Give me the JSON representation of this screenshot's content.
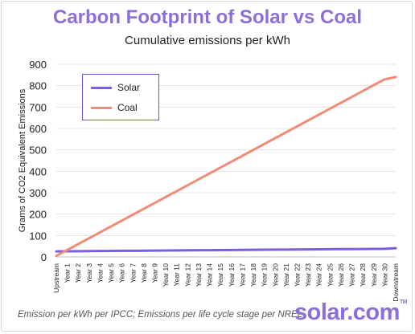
{
  "header": {
    "title": "Carbon Footprint of Solar vs Coal",
    "subtitle": "Cumulative emissions per kWh"
  },
  "footer": {
    "source": "Emission per kWh per IPCC; Emissions per life cycle stage per NREL.",
    "brand": "solar.com",
    "brand_mark": "TM"
  },
  "colors": {
    "title": "#8c6fd8",
    "solar": "#7b5fe0",
    "coal": "#f08c78",
    "grid": "#e3e3e3"
  },
  "chart_data": {
    "type": "line",
    "title": "Carbon Footprint of Solar vs Coal",
    "subtitle": "Cumulative emissions per kWh",
    "xlabel": "",
    "ylabel": "Grams of CO2 Equivalent Emissions",
    "ylim": [
      0,
      900
    ],
    "yticks": [
      0,
      100,
      200,
      300,
      400,
      500,
      600,
      700,
      800,
      900
    ],
    "grid": true,
    "legend_position": "top-left",
    "categories": [
      "Upstream",
      "Year 1",
      "Year 2",
      "Year 3",
      "Year 4",
      "Year 5",
      "Year 6",
      "Year 7",
      "Year 8",
      "Year 9",
      "Year 10",
      "Year 11",
      "Year 12",
      "Year 13",
      "Year 14",
      "Year 15",
      "Year 16",
      "Year 17",
      "Year 18",
      "Year 19",
      "Year 20",
      "Year 21",
      "Year 22",
      "Year 23",
      "Year 24",
      "Year 25",
      "Year 26",
      "Year 27",
      "Year 28",
      "Year 29",
      "Year 30",
      "Downstream"
    ],
    "series": [
      {
        "name": "Solar",
        "color": "#7b5fe0",
        "values": [
          26,
          26.4,
          26.8,
          27.2,
          27.6,
          28,
          28.4,
          28.8,
          29.2,
          29.6,
          30,
          30.4,
          30.8,
          31.2,
          31.6,
          32,
          32.4,
          32.8,
          33.2,
          33.6,
          34,
          34.4,
          34.8,
          35.2,
          35.6,
          36,
          36.4,
          36.8,
          37.2,
          37.6,
          38,
          41
        ]
      },
      {
        "name": "Coal",
        "color": "#f08c78",
        "values": [
          5,
          32.5,
          60,
          87.5,
          115,
          142.5,
          170,
          197.5,
          225,
          252.5,
          280,
          307.5,
          335,
          362.5,
          390,
          417.5,
          445,
          472.5,
          500,
          527.5,
          555,
          582.5,
          610,
          637.5,
          665,
          692.5,
          720,
          747.5,
          775,
          802.5,
          830,
          840
        ]
      }
    ]
  }
}
